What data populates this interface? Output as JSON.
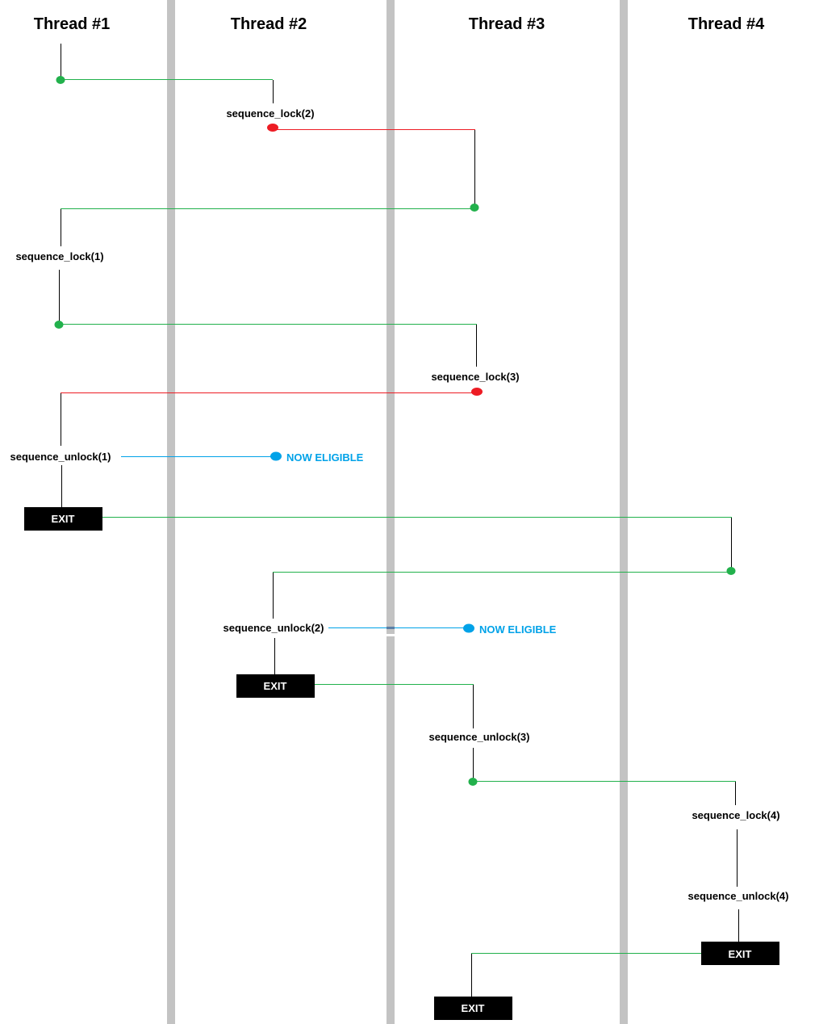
{
  "colors": {
    "separator": "#c3c3c3",
    "ok_line": "#22b14c",
    "block_line": "#ed1c24",
    "eligible": "#00a2e8",
    "exit_box": "#000000",
    "exit_text": "#ffffff"
  },
  "headers": [
    "Thread #1",
    "Thread #2",
    "Thread #3",
    "Thread #4"
  ],
  "labels": {
    "t2_lock": "sequence_lock(2)",
    "t1_lock": "sequence_lock(1)",
    "t3_lock": "sequence_lock(3)",
    "t1_unlock": "sequence_unlock(1)",
    "t2_unlock": "sequence_unlock(2)",
    "t3_unlock": "sequence_unlock(3)",
    "t4_lock": "sequence_lock(4)",
    "t4_unlock": "sequence_unlock(4)"
  },
  "eligible_label": "NOW ELIGIBLE",
  "exit_label": "EXIT"
}
